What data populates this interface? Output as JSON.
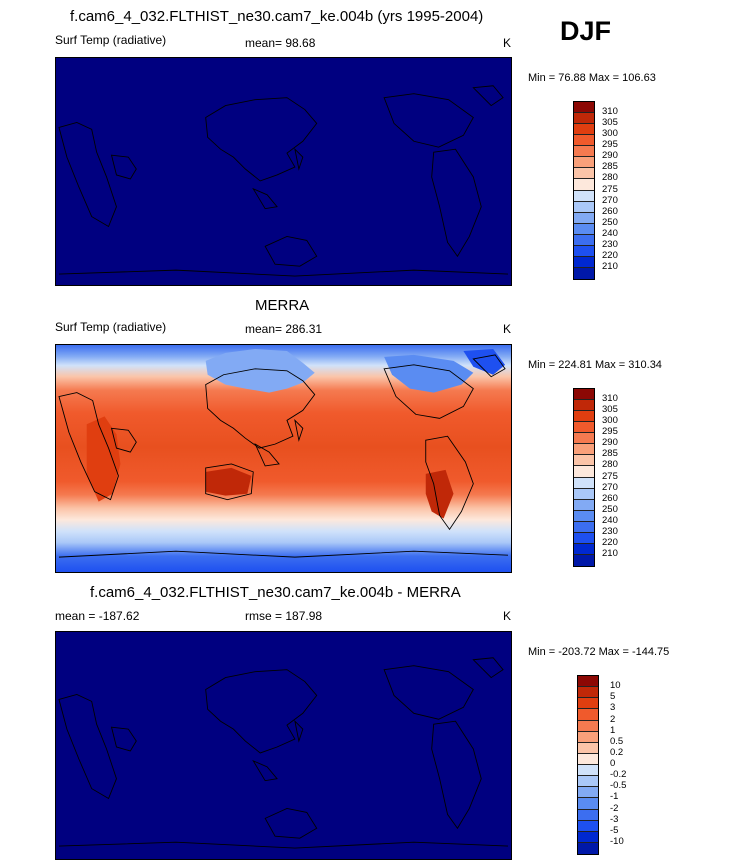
{
  "season": "DJF",
  "panels": [
    {
      "title": "f.cam6_4_032.FLTHIST_ne30.cam7_ke.004b (yrs 1995-2004)",
      "left_label": "Surf Temp (radiative)",
      "center_label": "mean=  98.68",
      "units": "K",
      "minmax": "Min =  76.88 Max = 106.63",
      "colorbar_labels": [
        "310",
        "305",
        "300",
        "295",
        "290",
        "285",
        "280",
        "275",
        "270",
        "260",
        "250",
        "240",
        "230",
        "220",
        "210"
      ]
    },
    {
      "title": "MERRA",
      "left_label": "Surf Temp (radiative)",
      "center_label": "mean= 286.31",
      "units": "K",
      "minmax": "Min = 224.81 Max = 310.34",
      "colorbar_labels": [
        "310",
        "305",
        "300",
        "295",
        "290",
        "285",
        "280",
        "275",
        "270",
        "260",
        "250",
        "240",
        "230",
        "220",
        "210"
      ]
    },
    {
      "title": "f.cam6_4_032.FLTHIST_ne30.cam7_ke.004b - MERRA",
      "left_label": "mean = -187.62",
      "center_label": "rmse = 187.98",
      "units": "K",
      "minmax": "Min = -203.72 Max = -144.75",
      "colorbar_labels": [
        "10",
        "5",
        "3",
        "2",
        "1",
        "0.5",
        "0.2",
        "0",
        "-0.2",
        "-0.5",
        "-1",
        "-2",
        "-3",
        "-5",
        "-10"
      ]
    }
  ],
  "colors": {
    "scale": [
      "#000080",
      "#0018a8",
      "#0028d0",
      "#1e50f0",
      "#3c6ef0",
      "#5a8cf2",
      "#82aaf4",
      "#aac8f8",
      "#d0e2fa",
      "#fde8dc",
      "#fbc4a8",
      "#f9a07a",
      "#f57a50",
      "#f05a2c",
      "#e03e10",
      "#c02808",
      "#8c0804"
    ],
    "deep_blue": "#000080",
    "coastline": "#000000"
  }
}
